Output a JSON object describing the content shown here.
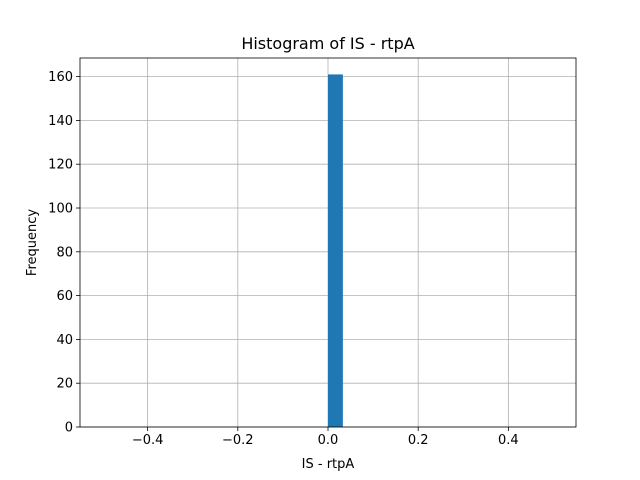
{
  "chart_data": {
    "type": "bar",
    "title": "Histogram of IS - rtpA",
    "xlabel": "IS - rtpA",
    "ylabel": "Frequency",
    "xlim": [
      -0.55,
      0.55
    ],
    "ylim": [
      0,
      168.5
    ],
    "xticks": [
      -0.4,
      -0.2,
      0.0,
      0.2,
      0.4
    ],
    "xtick_labels": [
      "−0.4",
      "−0.2",
      "0.0",
      "0.2",
      "0.4"
    ],
    "yticks": [
      0,
      20,
      40,
      60,
      80,
      100,
      120,
      140,
      160
    ],
    "ytick_labels": [
      "0",
      "20",
      "40",
      "60",
      "80",
      "100",
      "120",
      "140",
      "160"
    ],
    "grid": true,
    "bins": [
      {
        "x0": 0.0,
        "x1": 0.033,
        "count": 161
      }
    ],
    "colors": {
      "bar": "#1f77b4",
      "grid": "#b0b0b0",
      "axis": "#000000"
    }
  }
}
